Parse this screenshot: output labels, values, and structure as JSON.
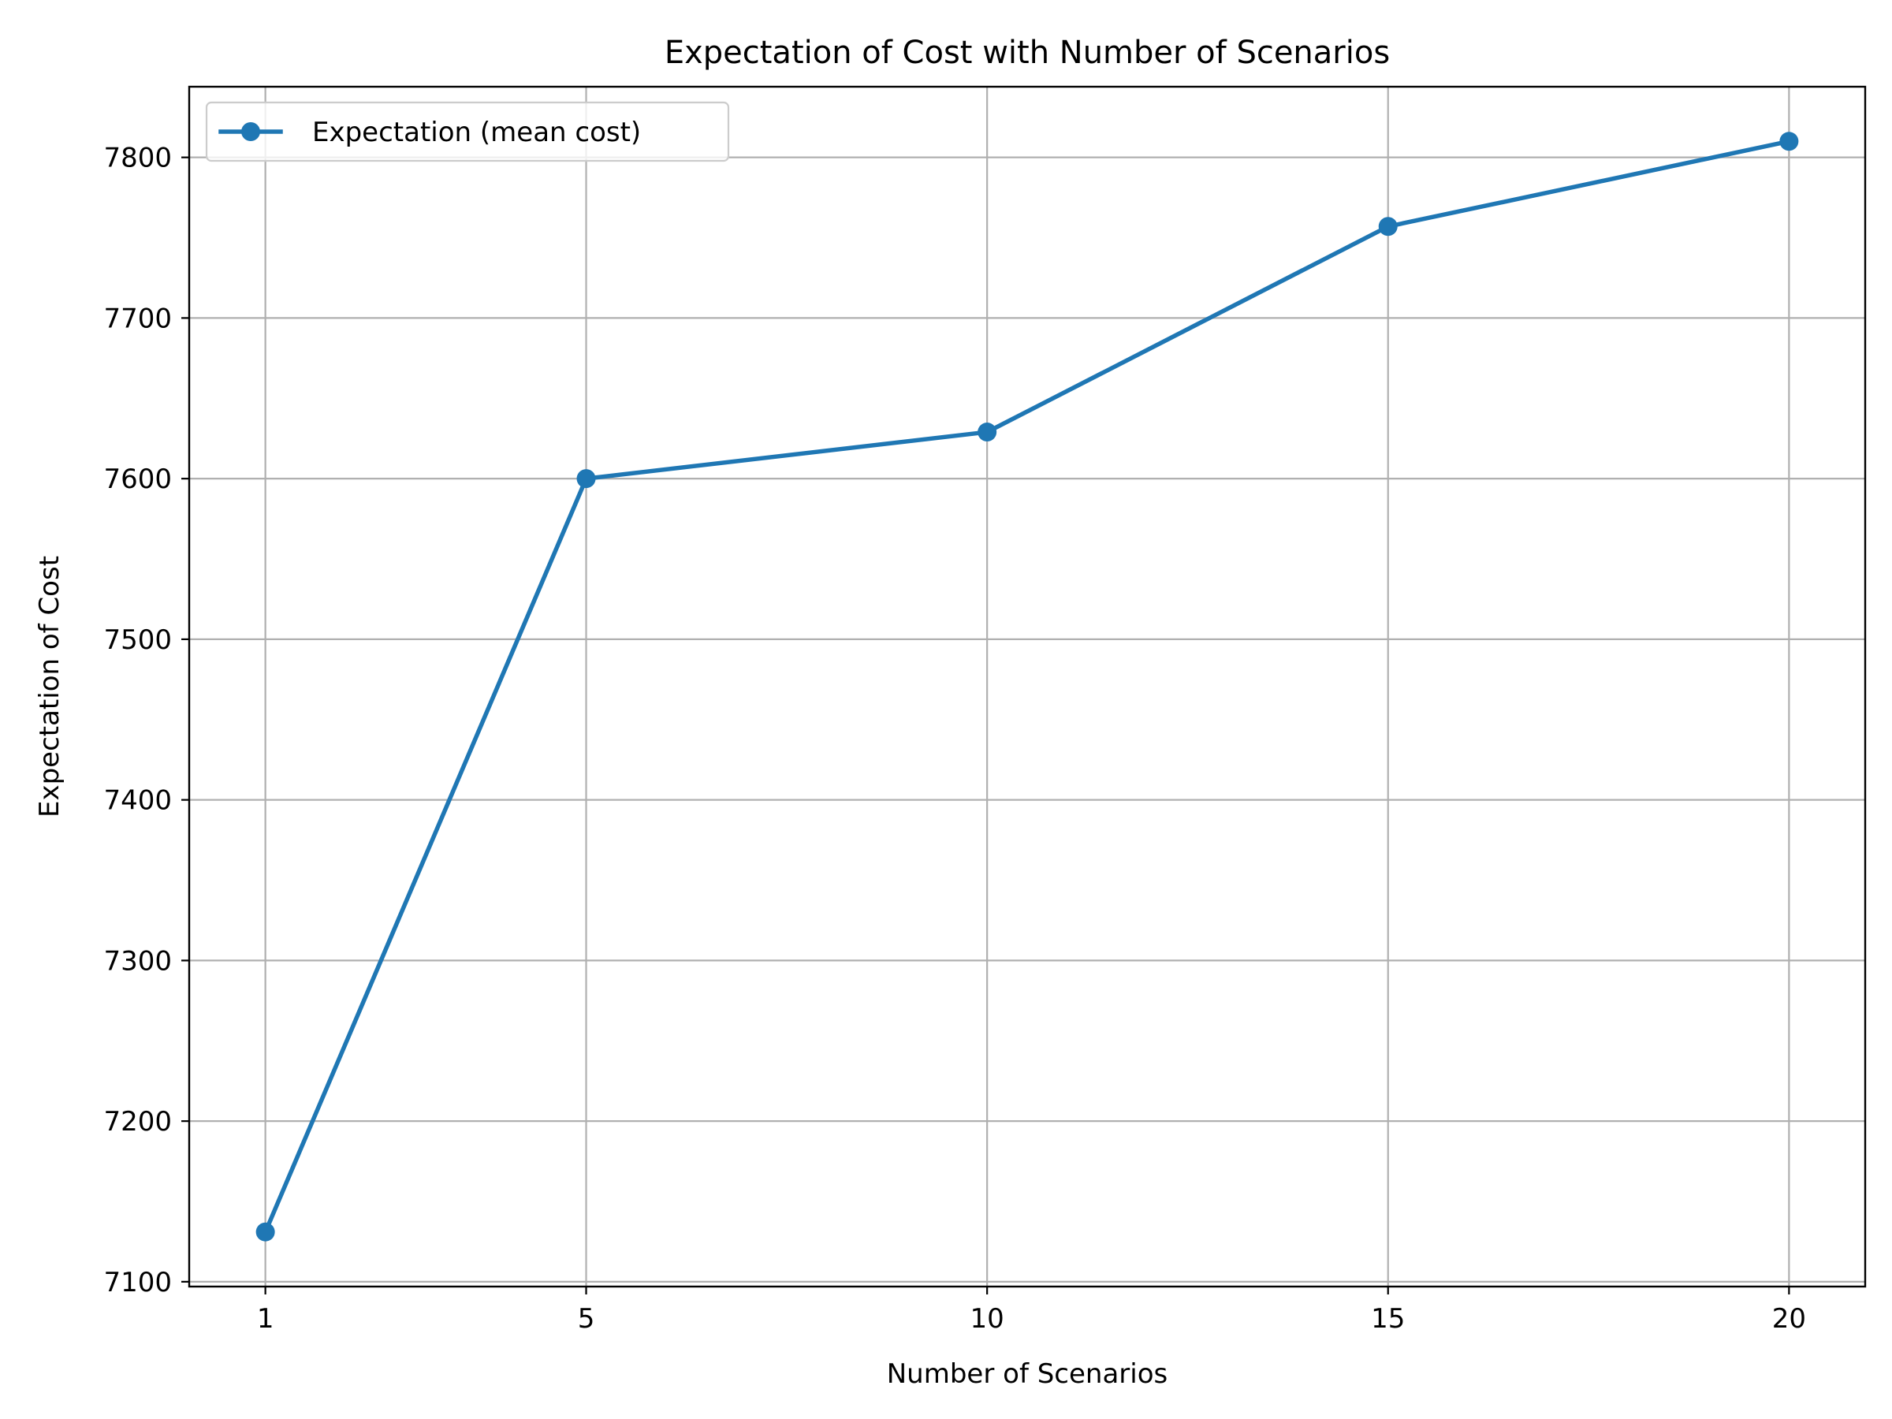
{
  "chart_data": {
    "type": "line",
    "title": "Expectation of Cost with Number of Scenarios",
    "xlabel": "Number of Scenarios",
    "ylabel": "Expectation of Cost",
    "x": [
      1,
      5,
      10,
      15,
      20
    ],
    "series": [
      {
        "name": "Expectation (mean cost)",
        "values": [
          7131,
          7600,
          7629,
          7757,
          7810
        ],
        "color": "#1f77b4",
        "marker": "circle"
      }
    ],
    "xticks": [
      1,
      5,
      10,
      15,
      20
    ],
    "yticks": [
      7100,
      7200,
      7300,
      7400,
      7500,
      7600,
      7700,
      7800
    ],
    "xlim": [
      0.05,
      20.95
    ],
    "ylim": [
      7097,
      7844
    ],
    "grid": true,
    "legend_position": "upper left"
  }
}
